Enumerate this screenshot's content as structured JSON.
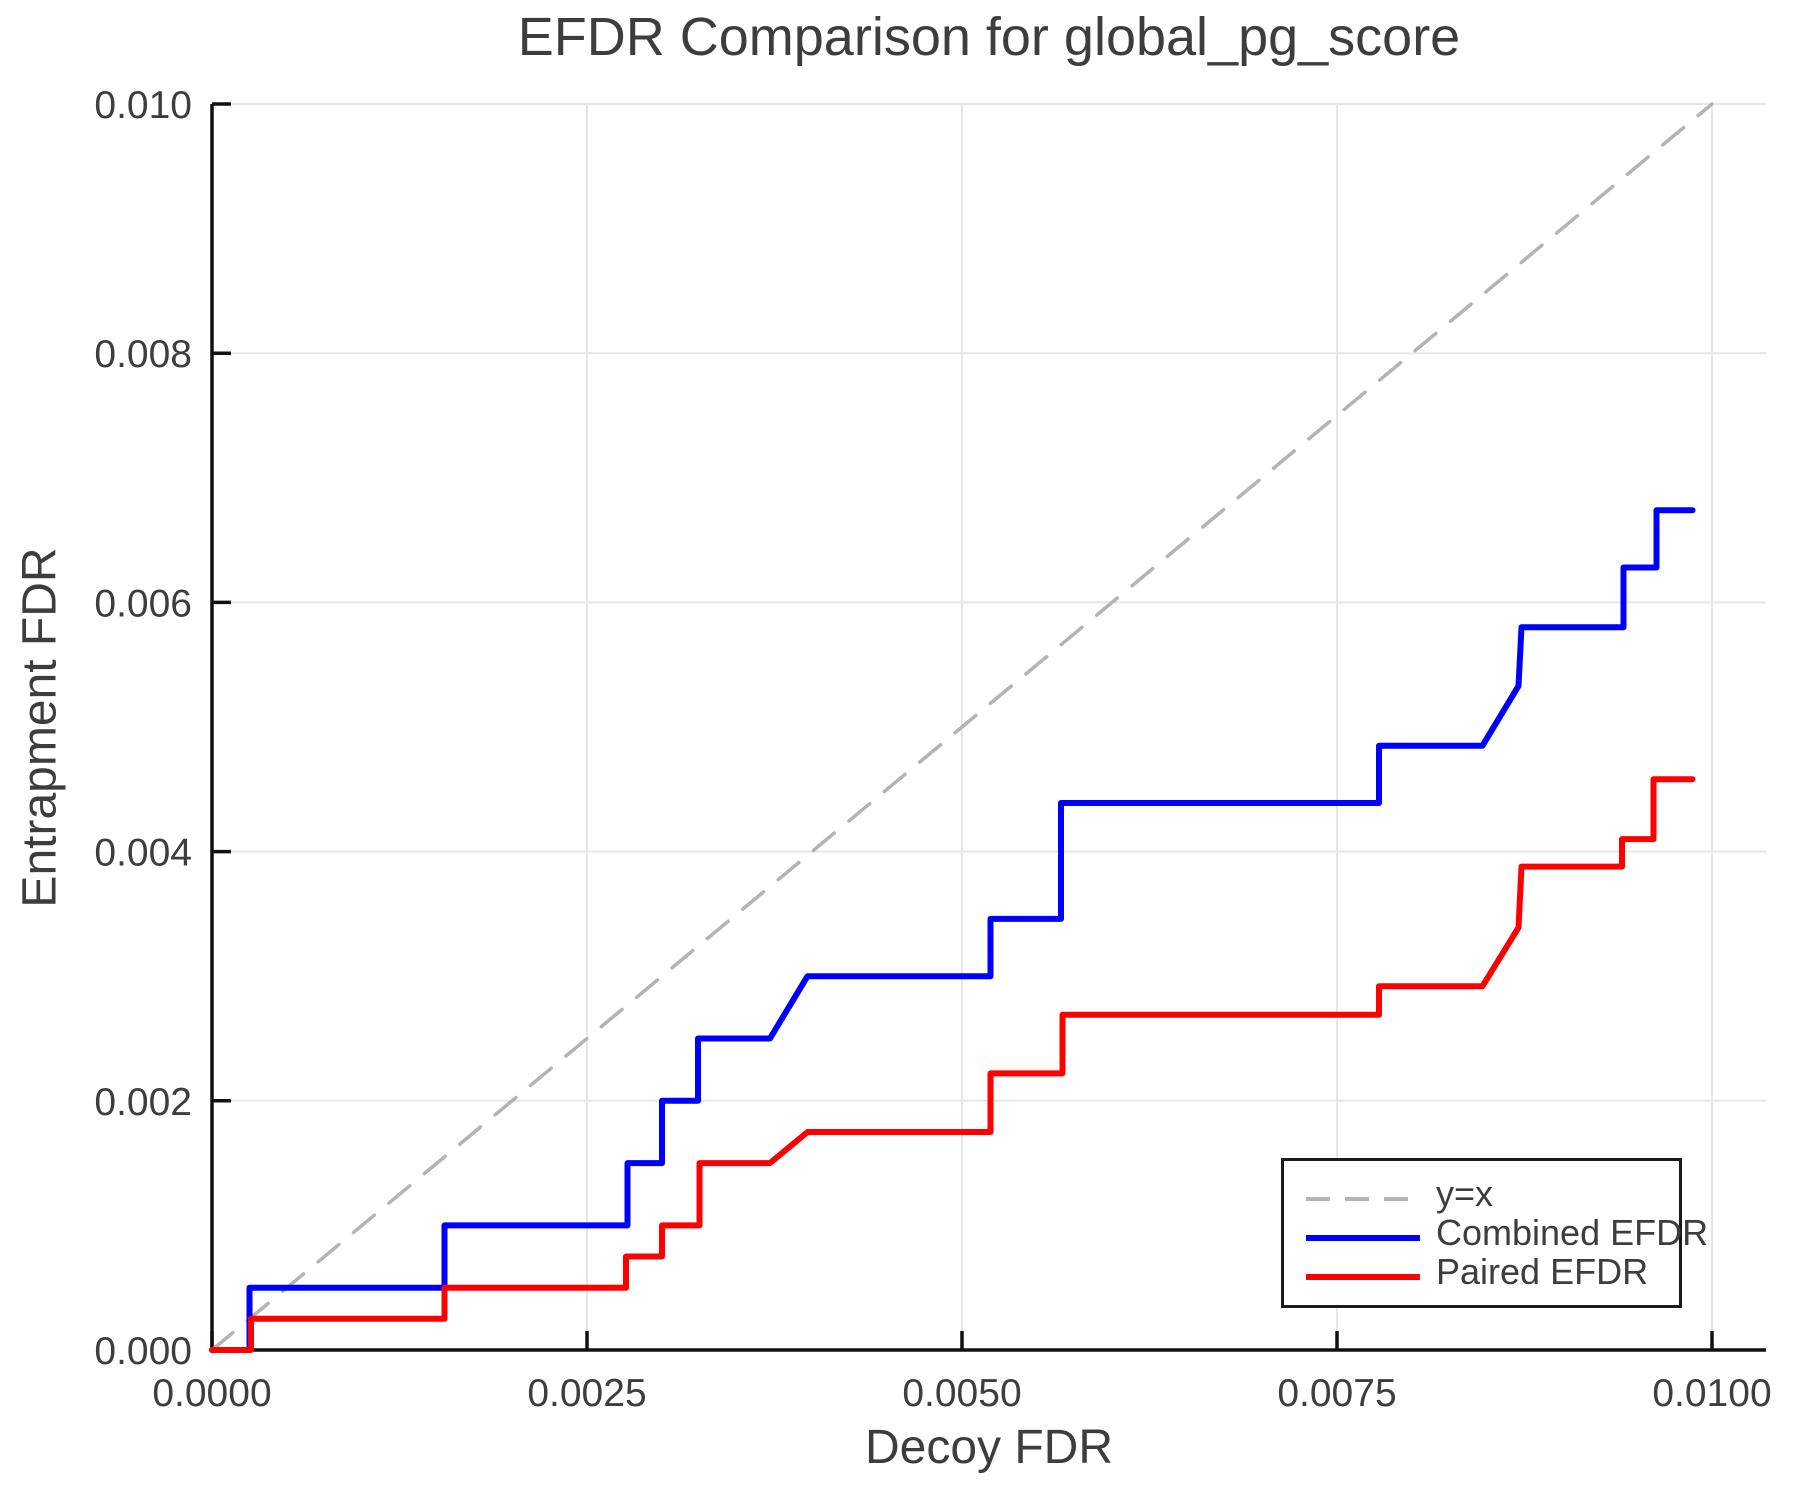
{
  "chart_data": {
    "type": "line",
    "title": "EFDR Comparison for global_pg_score",
    "xlabel": "Decoy FDR",
    "ylabel": "Entrapment FDR",
    "xlim": [
      0,
      0.01036
    ],
    "ylim": [
      0,
      0.01
    ],
    "grid": true,
    "legend_position": "lower right",
    "x_ticks": [
      0.0,
      0.0025,
      0.005,
      0.0075,
      0.01
    ],
    "x_tick_labels": [
      "0.0000",
      "0.0025",
      "0.0050",
      "0.0075",
      "0.0100"
    ],
    "y_ticks": [
      0.0,
      0.002,
      0.004,
      0.006,
      0.008,
      0.01
    ],
    "y_tick_labels": [
      "0.000",
      "0.002",
      "0.004",
      "0.006",
      "0.008",
      "0.010"
    ],
    "colors": {
      "grid": "#e6e6e6",
      "spine": "#111111",
      "text": "#3d3d3d",
      "identity_line": "#b3b3b3",
      "combined_efdr": "#0000ff",
      "paired_efdr": "#ff0000"
    },
    "series": [
      {
        "name": "y=x",
        "color": "#b3b3b3",
        "style": "dashed",
        "points": [
          [
            0,
            0
          ],
          [
            0.01,
            0.01
          ]
        ]
      },
      {
        "name": "Combined EFDR",
        "color": "#0000ff",
        "style": "solid",
        "points": [
          [
            0,
            0
          ],
          [
            0.00025,
            0
          ],
          [
            0.00025,
            0.0005
          ],
          [
            0.00155,
            0.0005
          ],
          [
            0.00155,
            0.001
          ],
          [
            0.00277,
            0.001
          ],
          [
            0.00277,
            0.0015
          ],
          [
            0.003,
            0.0015
          ],
          [
            0.003,
            0.002
          ],
          [
            0.00324,
            0.002
          ],
          [
            0.00324,
            0.0025
          ],
          [
            0.00372,
            0.0025
          ],
          [
            0.00397,
            0.003
          ],
          [
            0.00519,
            0.003
          ],
          [
            0.00519,
            0.00346
          ],
          [
            0.00566,
            0.00346
          ],
          [
            0.00566,
            0.00439
          ],
          [
            0.00778,
            0.00439
          ],
          [
            0.00778,
            0.00485
          ],
          [
            0.00847,
            0.00485
          ],
          [
            0.00871,
            0.00533
          ],
          [
            0.00873,
            0.0058
          ],
          [
            0.00941,
            0.0058
          ],
          [
            0.00941,
            0.00628
          ],
          [
            0.00963,
            0.00628
          ],
          [
            0.00963,
            0.00674
          ],
          [
            0.00987,
            0.00674
          ]
        ]
      },
      {
        "name": "Paired EFDR",
        "color": "#ff0000",
        "style": "solid",
        "points": [
          [
            0,
            0
          ],
          [
            0.00026,
            0
          ],
          [
            0.00026,
            0.00025
          ],
          [
            0.00155,
            0.00025
          ],
          [
            0.00155,
            0.0005
          ],
          [
            0.00276,
            0.0005
          ],
          [
            0.00276,
            0.00075
          ],
          [
            0.003,
            0.00075
          ],
          [
            0.003,
            0.001
          ],
          [
            0.00325,
            0.001
          ],
          [
            0.00325,
            0.0015
          ],
          [
            0.00372,
            0.0015
          ],
          [
            0.00397,
            0.00175
          ],
          [
            0.00519,
            0.00175
          ],
          [
            0.00519,
            0.00222
          ],
          [
            0.00567,
            0.00222
          ],
          [
            0.00567,
            0.00269
          ],
          [
            0.00778,
            0.00269
          ],
          [
            0.00778,
            0.00292
          ],
          [
            0.00847,
            0.00292
          ],
          [
            0.00871,
            0.00339
          ],
          [
            0.00873,
            0.00388
          ],
          [
            0.0094,
            0.00388
          ],
          [
            0.0094,
            0.0041
          ],
          [
            0.00961,
            0.0041
          ],
          [
            0.00961,
            0.00458
          ],
          [
            0.00987,
            0.00458
          ]
        ]
      }
    ]
  }
}
